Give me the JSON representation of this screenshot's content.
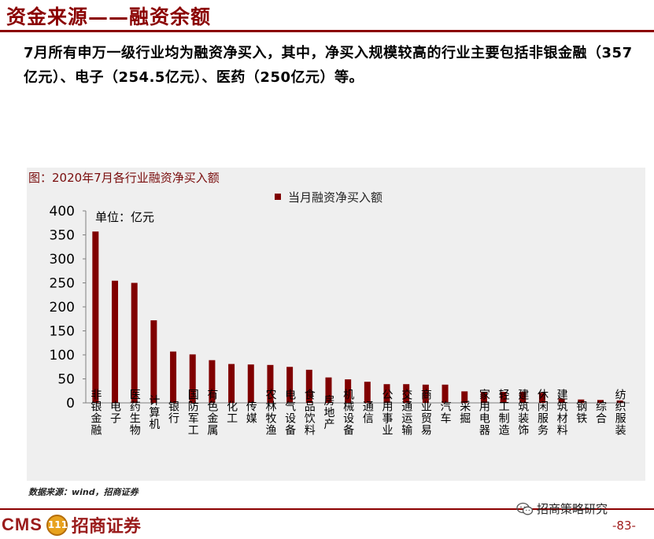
{
  "header": {
    "title": "资金来源——融资余额",
    "lead": "7月所有申万一级行业均为融资净买入，其中，净买入规模较高的行业主要包括非银金融（357亿元）、电子（254.5亿元）、医药（250亿元）等。"
  },
  "chart_title": "图：2020年7月各行业融资净买入额",
  "chart_data": {
    "type": "bar",
    "unit_note": "单位：亿元",
    "series": [
      {
        "name": "当月融资净买入额",
        "values": [
          357,
          254.5,
          250,
          172,
          107,
          101,
          89,
          81,
          80,
          79,
          75,
          69,
          53,
          49,
          44,
          39,
          39,
          38,
          38,
          24,
          23,
          23,
          23,
          21,
          9,
          7,
          6,
          5
        ]
      }
    ],
    "categories": [
      "非银金融",
      "电子",
      "医药生物",
      "计算机",
      "银行",
      "国防军工",
      "有色金属",
      "化工",
      "传媒",
      "农林牧渔",
      "电气设备",
      "食品饮料",
      "房地产",
      "机械设备",
      "通信",
      "公用事业",
      "交通运输",
      "商业贸易",
      "汽车",
      "采掘",
      "家用电器",
      "轻工制造",
      "建筑装饰",
      "休闲服务",
      "建筑材料",
      "钢铁",
      "综合",
      "纺织服装"
    ],
    "ylim": [
      0,
      400
    ],
    "yticks": [
      0,
      50,
      100,
      150,
      200,
      250,
      300,
      350,
      400
    ],
    "color": "#800000",
    "legend_position": "top-center",
    "grid": false
  },
  "source": "数据来源：wind，招商证券",
  "footer": {
    "logo_text": "CMS",
    "coin_text": "111",
    "logo_name": "招商证券",
    "wechat_label": "招商策略研究",
    "page_number": "-83-"
  }
}
